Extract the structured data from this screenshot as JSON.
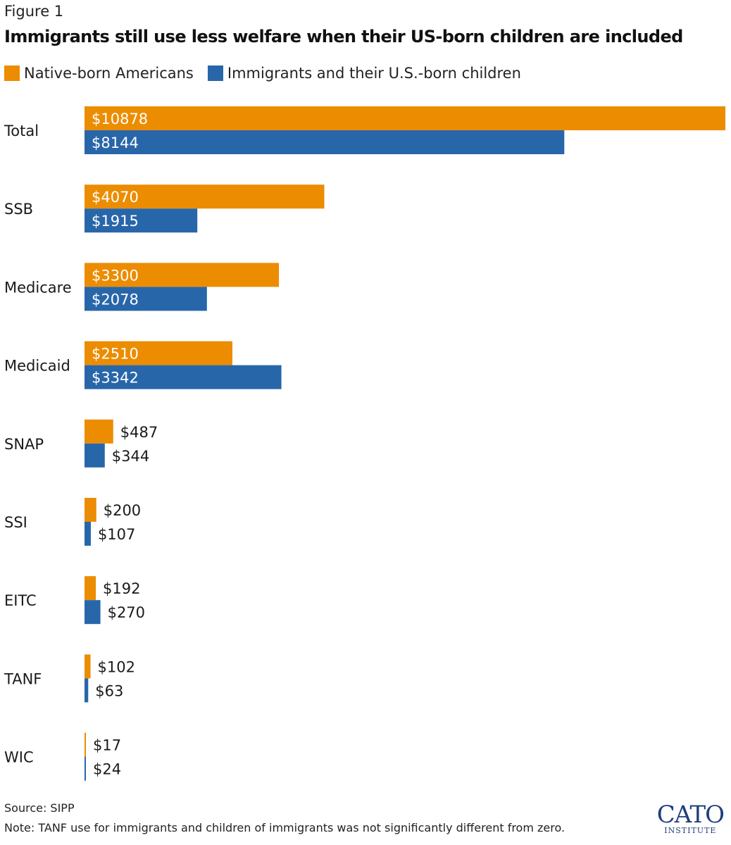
{
  "figure_label": "Figure 1",
  "logo": {
    "main": "CATO",
    "sub": "INSTITUTE"
  },
  "source": "Source: SIPP",
  "note": "Note: TANF use for immigrants and children of immigrants was not significantly different from zero.",
  "colors": {
    "native": "#ec8c00",
    "immigrant": "#2866aa"
  },
  "chart_data": {
    "type": "bar",
    "orientation": "horizontal",
    "title": "Immigrants still use less welfare when their US-born children are included",
    "xlabel": "",
    "ylabel": "",
    "xlim": [
      0,
      10878
    ],
    "grid": false,
    "legend_position": "top-left",
    "categories": [
      "Total",
      "SSB",
      "Medicare",
      "Medicaid",
      "SNAP",
      "SSI",
      "EITC",
      "TANF",
      "WIC"
    ],
    "series": [
      {
        "name": "Native-born Americans",
        "values": [
          10878,
          4070,
          3300,
          2510,
          487,
          200,
          192,
          102,
          17
        ],
        "labels": [
          "$10878",
          "$4070",
          "$3300",
          "$2510",
          "$487",
          "$200",
          "$192",
          "$102",
          "$17"
        ]
      },
      {
        "name": "Immigrants and their U.S.-born children",
        "values": [
          8144,
          1915,
          2078,
          3342,
          344,
          107,
          270,
          63,
          24
        ],
        "labels": [
          "$8144",
          "$1915",
          "$2078",
          "$3342",
          "$344",
          "$107",
          "$270",
          "$63",
          "$24"
        ]
      }
    ]
  }
}
